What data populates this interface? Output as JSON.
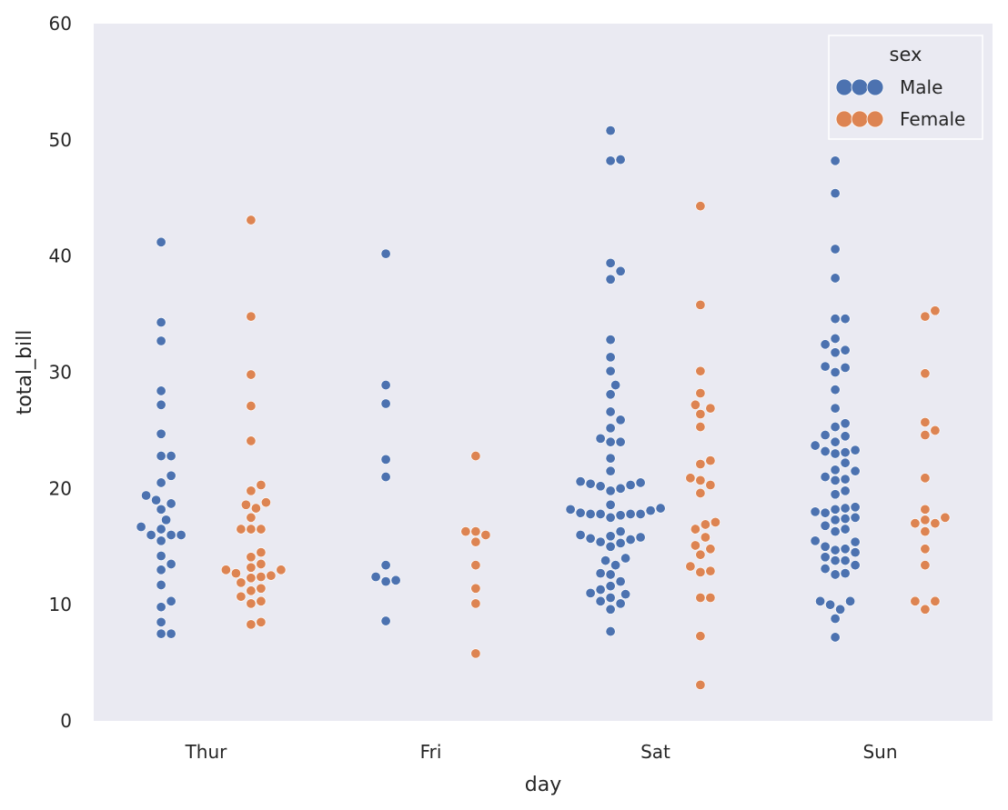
{
  "chart_data": {
    "type": "scatter",
    "subtype": "swarm",
    "title": "",
    "xlabel": "day",
    "ylabel": "total_bill",
    "ylim": [
      0,
      60
    ],
    "yticks": [
      0,
      10,
      20,
      30,
      40,
      50,
      60
    ],
    "categories": [
      "Thur",
      "Fri",
      "Sat",
      "Sun"
    ],
    "grid": false,
    "legend": {
      "title": "sex",
      "placement": "top-right"
    },
    "series": [
      {
        "name": "Male",
        "color": "#4c72b0",
        "values": {
          "Thur": [
            41.2,
            34.3,
            32.7,
            28.4,
            27.2,
            24.7,
            22.8,
            22.8,
            21.1,
            20.5,
            19.4,
            19.0,
            18.7,
            18.2,
            17.3,
            16.7,
            16.5,
            16.0,
            16.0,
            16.0,
            15.5,
            14.2,
            13.5,
            13.0,
            11.7,
            10.3,
            9.8,
            8.5,
            7.5,
            7.5
          ],
          "Fri": [
            40.2,
            28.9,
            27.3,
            22.5,
            21.0,
            13.4,
            12.4,
            12.1,
            12.0,
            8.6
          ],
          "Sat": [
            50.8,
            48.3,
            48.2,
            39.4,
            38.7,
            38.0,
            32.8,
            31.3,
            30.1,
            28.9,
            28.1,
            26.6,
            25.9,
            25.2,
            24.3,
            24.0,
            24.0,
            22.6,
            21.5,
            20.6,
            20.5,
            20.4,
            20.3,
            20.2,
            20.0,
            19.8,
            18.6,
            18.3,
            18.2,
            18.1,
            17.9,
            17.8,
            17.8,
            17.8,
            17.8,
            17.7,
            17.5,
            16.3,
            16.0,
            15.9,
            15.8,
            15.7,
            15.6,
            15.4,
            15.3,
            15.0,
            14.0,
            13.8,
            13.4,
            12.7,
            12.6,
            12.0,
            11.6,
            11.3,
            11.0,
            10.9,
            10.6,
            10.3,
            10.1,
            9.6,
            7.7
          ],
          "Sun": [
            48.2,
            45.4,
            40.6,
            38.1,
            34.6,
            34.6,
            32.9,
            32.4,
            31.9,
            31.7,
            30.5,
            30.4,
            30.0,
            28.5,
            26.9,
            25.6,
            25.3,
            24.6,
            24.5,
            24.0,
            23.7,
            23.3,
            23.2,
            23.1,
            23.0,
            22.2,
            21.6,
            21.5,
            21.0,
            20.8,
            20.7,
            19.8,
            19.5,
            18.4,
            18.3,
            18.2,
            18.0,
            17.9,
            17.5,
            17.4,
            17.3,
            16.8,
            16.5,
            16.3,
            15.5,
            15.4,
            15.0,
            14.8,
            14.7,
            14.5,
            14.1,
            13.8,
            13.8,
            13.4,
            13.1,
            12.7,
            12.6,
            10.3,
            10.3,
            10.0,
            9.6,
            8.8,
            7.2
          ]
        }
      },
      {
        "name": "Female",
        "color": "#dd8452",
        "values": {
          "Thur": [
            43.1,
            34.8,
            29.8,
            27.1,
            24.1,
            20.3,
            19.8,
            18.8,
            18.6,
            18.3,
            17.5,
            16.5,
            16.5,
            16.5,
            14.5,
            14.1,
            13.5,
            13.2,
            13.0,
            13.0,
            12.7,
            12.5,
            12.4,
            12.3,
            11.9,
            11.4,
            11.2,
            10.7,
            10.3,
            10.1,
            8.5,
            8.3
          ],
          "Fri": [
            22.8,
            16.3,
            16.3,
            16.0,
            15.4,
            13.4,
            11.4,
            10.1,
            5.8
          ],
          "Sat": [
            44.3,
            35.8,
            30.1,
            28.2,
            27.2,
            26.9,
            26.4,
            25.3,
            22.4,
            22.1,
            20.9,
            20.7,
            20.3,
            19.6,
            17.1,
            16.9,
            16.5,
            15.8,
            15.1,
            14.8,
            14.3,
            13.3,
            12.9,
            12.8,
            10.6,
            10.6,
            7.3,
            3.1
          ],
          "Sun": [
            35.3,
            34.8,
            29.9,
            25.7,
            25.0,
            24.6,
            20.9,
            18.2,
            17.5,
            17.3,
            17.0,
            17.0,
            16.3,
            14.8,
            13.4,
            10.3,
            10.3,
            9.6
          ]
        }
      }
    ]
  }
}
